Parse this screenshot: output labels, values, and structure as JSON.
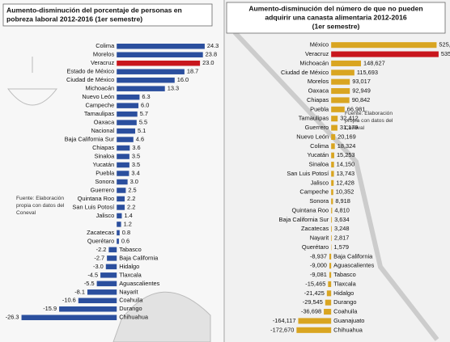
{
  "chart_data": [
    {
      "type": "bar",
      "orientation": "horizontal",
      "title": [
        "Aumento-disminución del porcentaje de personas en",
        "pobreza laboral  2012-2016 (1er semestre)"
      ],
      "note": [
        "Fuente: Elaboración",
        "propia con datos del",
        "Coneval"
      ],
      "categories": [
        "Colima",
        "Morelos",
        "Veracruz",
        "Estado de México",
        "Ciudad de México",
        "Michoacán",
        "Nuevo León",
        "Campeche",
        "Tamaulipas",
        "Oaxaca",
        "Nacional",
        "Baja California Sur",
        "Chiapas",
        "Sinaloa",
        "Yucatán",
        "Puebla",
        "Sonora",
        "Guerrero",
        "Quintana Roo",
        "San Luis Potosí",
        "Jalisco",
        null,
        "Zacatecas",
        "Querétaro",
        "Tabasco",
        "Baja California",
        "Hidalgo",
        "Tlaxcala",
        "Aguascalientes",
        "Nayarit",
        "Coahuila",
        "Durango",
        "Chihuahua"
      ],
      "values": [
        24.3,
        23.8,
        23.0,
        18.7,
        16.0,
        13.3,
        6.3,
        6.0,
        5.7,
        5.5,
        5.1,
        4.6,
        3.6,
        3.5,
        3.5,
        3.4,
        3.0,
        2.5,
        2.2,
        2.2,
        1.4,
        1.2,
        0.8,
        0.6,
        -2.2,
        -2.7,
        -3.0,
        -4.5,
        -5.5,
        -8.1,
        -10.6,
        -15.9,
        -26.3
      ],
      "value_labels": [
        "24.3",
        "23.8",
        "23.0",
        "18.7",
        "16.0",
        "13.3",
        "6.3",
        "6.0",
        "5.7",
        "5.5",
        "5.1",
        "4.6",
        "3.6",
        "3.5",
        "3.5",
        "3.4",
        "3.0",
        "2.5",
        "2.2",
        "2.2",
        "1.4",
        "1.2",
        "0.8",
        "0.6",
        "-2.2",
        "-2.7",
        "-3.0",
        "-4.5",
        "-5.5",
        "-8.1",
        "-10.6",
        "-15.9",
        "-26.3"
      ],
      "colors": [
        "#2b4f9e",
        "#2b4f9e",
        "#c8161d",
        "#2b4f9e",
        "#2b4f9e",
        "#2b4f9e",
        "#2b4f9e",
        "#2b4f9e",
        "#2b4f9e",
        "#2b4f9e",
        "#2b4f9e",
        "#2b4f9e",
        "#2b4f9e",
        "#2b4f9e",
        "#2b4f9e",
        "#2b4f9e",
        "#2b4f9e",
        "#2b4f9e",
        "#2b4f9e",
        "#2b4f9e",
        "#2b4f9e",
        "#2b4f9e",
        "#2b4f9e",
        "#2b4f9e",
        "#2b4f9e",
        "#2b4f9e",
        "#2b4f9e",
        "#2b4f9e",
        "#2b4f9e",
        "#2b4f9e",
        "#2b4f9e",
        "#2b4f9e",
        "#2b4f9e"
      ],
      "xlim": [
        -30,
        27
      ]
    },
    {
      "type": "bar",
      "orientation": "horizontal",
      "title": [
        "Aumento-disminución del número de que no pueden",
        "adquirir una canasta alimentaria 2012-2016",
        "(1er semestre)"
      ],
      "note": [
        "Fuente: Elaboración",
        "propia con datos del",
        "Coneval"
      ],
      "categories": [
        "México",
        "Veracruz",
        "Michoacán",
        "Ciudad de México",
        "Morelos",
        "Oaxaca",
        "Chiapas",
        "Puebla",
        "Tamaulipas",
        "Guerrero",
        "Nuevo León",
        "Colima",
        "Yucatán",
        "Sinaloa",
        "San Luis Potosí",
        "Jalisco",
        "Campeche",
        "Sonora",
        "Quintana Roo",
        "Baja California Sur",
        "Zacatecas",
        "Nayarit",
        "Querétaro",
        "Baja California",
        "Aguascalientes",
        "Tabasco",
        "Tlaxcala",
        "Hidalgo",
        "Durango",
        "Coahuila",
        "Guanajuato",
        "Chihuahua"
      ],
      "values": [
        525433,
        535447,
        148627,
        115693,
        93017,
        92949,
        90842,
        66981,
        32412,
        31179,
        20169,
        18324,
        15253,
        14150,
        13743,
        12428,
        10352,
        8918,
        4810,
        3634,
        3248,
        2817,
        1579,
        -8937,
        -9000,
        -9081,
        -15465,
        -21425,
        -29545,
        -36698,
        -164117,
        -172670
      ],
      "value_labels": [
        "525,433",
        "535,447",
        "148,627",
        "115,693",
        "93,017",
        "92,949",
        "90,842",
        "66,981",
        "32,412",
        "31,179",
        "20,169",
        "18,324",
        "15,253",
        "14,150",
        "13,743",
        "12,428",
        "10,352",
        "8,918",
        "4,810",
        "3,634",
        "3,248",
        "2,817",
        "1,579",
        "-8,937",
        "-9,000",
        "-9,081",
        "-15,465",
        "-21,425",
        "-29,545",
        "-36,698",
        "-164,117",
        "-172,670"
      ],
      "colors": [
        "#d9a521",
        "#c8161d",
        "#d9a521",
        "#d9a521",
        "#d9a521",
        "#d9a521",
        "#d9a521",
        "#d9a521",
        "#d9a521",
        "#d9a521",
        "#d9a521",
        "#d9a521",
        "#d9a521",
        "#d9a521",
        "#d9a521",
        "#d9a521",
        "#d9a521",
        "#d9a521",
        "#d9a521",
        "#d9a521",
        "#d9a521",
        "#d9a521",
        "#d9a521",
        "#d9a521",
        "#d9a521",
        "#d9a521",
        "#d9a521",
        "#d9a521",
        "#d9a521",
        "#d9a521",
        "#d9a521",
        "#d9a521"
      ],
      "xlim": [
        -400000,
        560000
      ]
    }
  ]
}
